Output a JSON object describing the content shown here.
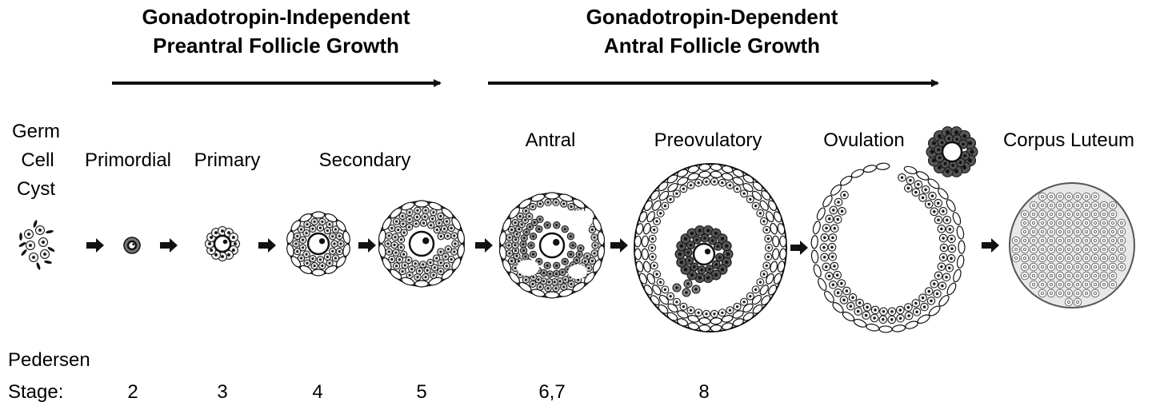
{
  "headers": {
    "left": {
      "line1": "Gonadotropin-Independent",
      "line2": "Preantral Follicle Growth"
    },
    "right": {
      "line1": "Gonadotropin-Dependent",
      "line2": "Antral Follicle Growth"
    }
  },
  "stages": {
    "germ_cell_cyst": {
      "line1": "Germ",
      "line2": "Cell",
      "line3": "Cyst"
    },
    "primordial": "Primordial",
    "primary": "Primary",
    "secondary": "Secondary",
    "antral": "Antral",
    "preovulatory": "Preovulatory",
    "ovulation": "Ovulation",
    "corpus_luteum": "Corpus Luteum"
  },
  "pedersen": {
    "label_line1": "Pedersen",
    "label_line2": "Stage:",
    "values": [
      "2",
      "3",
      "4",
      "5",
      "6,7",
      "8"
    ]
  },
  "colors": {
    "ink": "#111111",
    "dark_cell": "#555555",
    "light_cell": "#f2f2f2"
  }
}
